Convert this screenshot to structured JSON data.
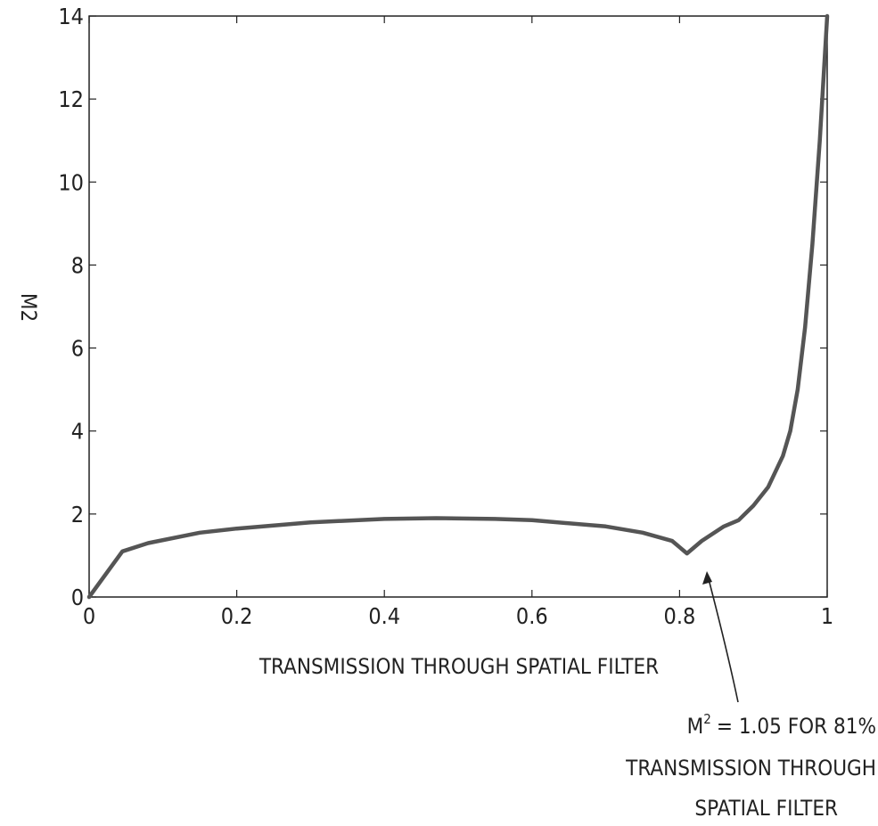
{
  "chart_data": {
    "type": "line",
    "xlabel": "TRANSMISSION THROUGH SPATIAL FILTER",
    "ylabel": "M2",
    "xlim": [
      0,
      1
    ],
    "ylim": [
      0,
      14
    ],
    "x_ticks": [
      "0",
      "0.2",
      "0.4",
      "0.6",
      "0.8",
      "1"
    ],
    "y_ticks": [
      "0",
      "2",
      "4",
      "6",
      "8",
      "10",
      "12",
      "14"
    ],
    "grid": false,
    "colors": {
      "line": "#555555",
      "axes": "#222222"
    },
    "series": [
      {
        "x": [
          0.0,
          0.045,
          0.08,
          0.15,
          0.2,
          0.3,
          0.4,
          0.47,
          0.55,
          0.6,
          0.7,
          0.75,
          0.79,
          0.81,
          0.83,
          0.86,
          0.88,
          0.9,
          0.92,
          0.94,
          0.95,
          0.96,
          0.97,
          0.98,
          0.99,
          1.0
        ],
        "y": [
          0.0,
          1.1,
          1.3,
          1.55,
          1.65,
          1.8,
          1.88,
          1.9,
          1.88,
          1.85,
          1.7,
          1.55,
          1.35,
          1.05,
          1.35,
          1.7,
          1.85,
          2.2,
          2.65,
          3.4,
          4.0,
          5.0,
          6.5,
          8.5,
          11.0,
          14.0
        ]
      }
    ],
    "annotation": {
      "lines": [
        "= 1.05 FOR 81%",
        "TRANSMISSION THROUGH",
        "SPATIAL FILTER"
      ],
      "prefix": "M",
      "superscript": "2",
      "points_to": {
        "x": 0.83,
        "y": 1.2
      }
    }
  }
}
